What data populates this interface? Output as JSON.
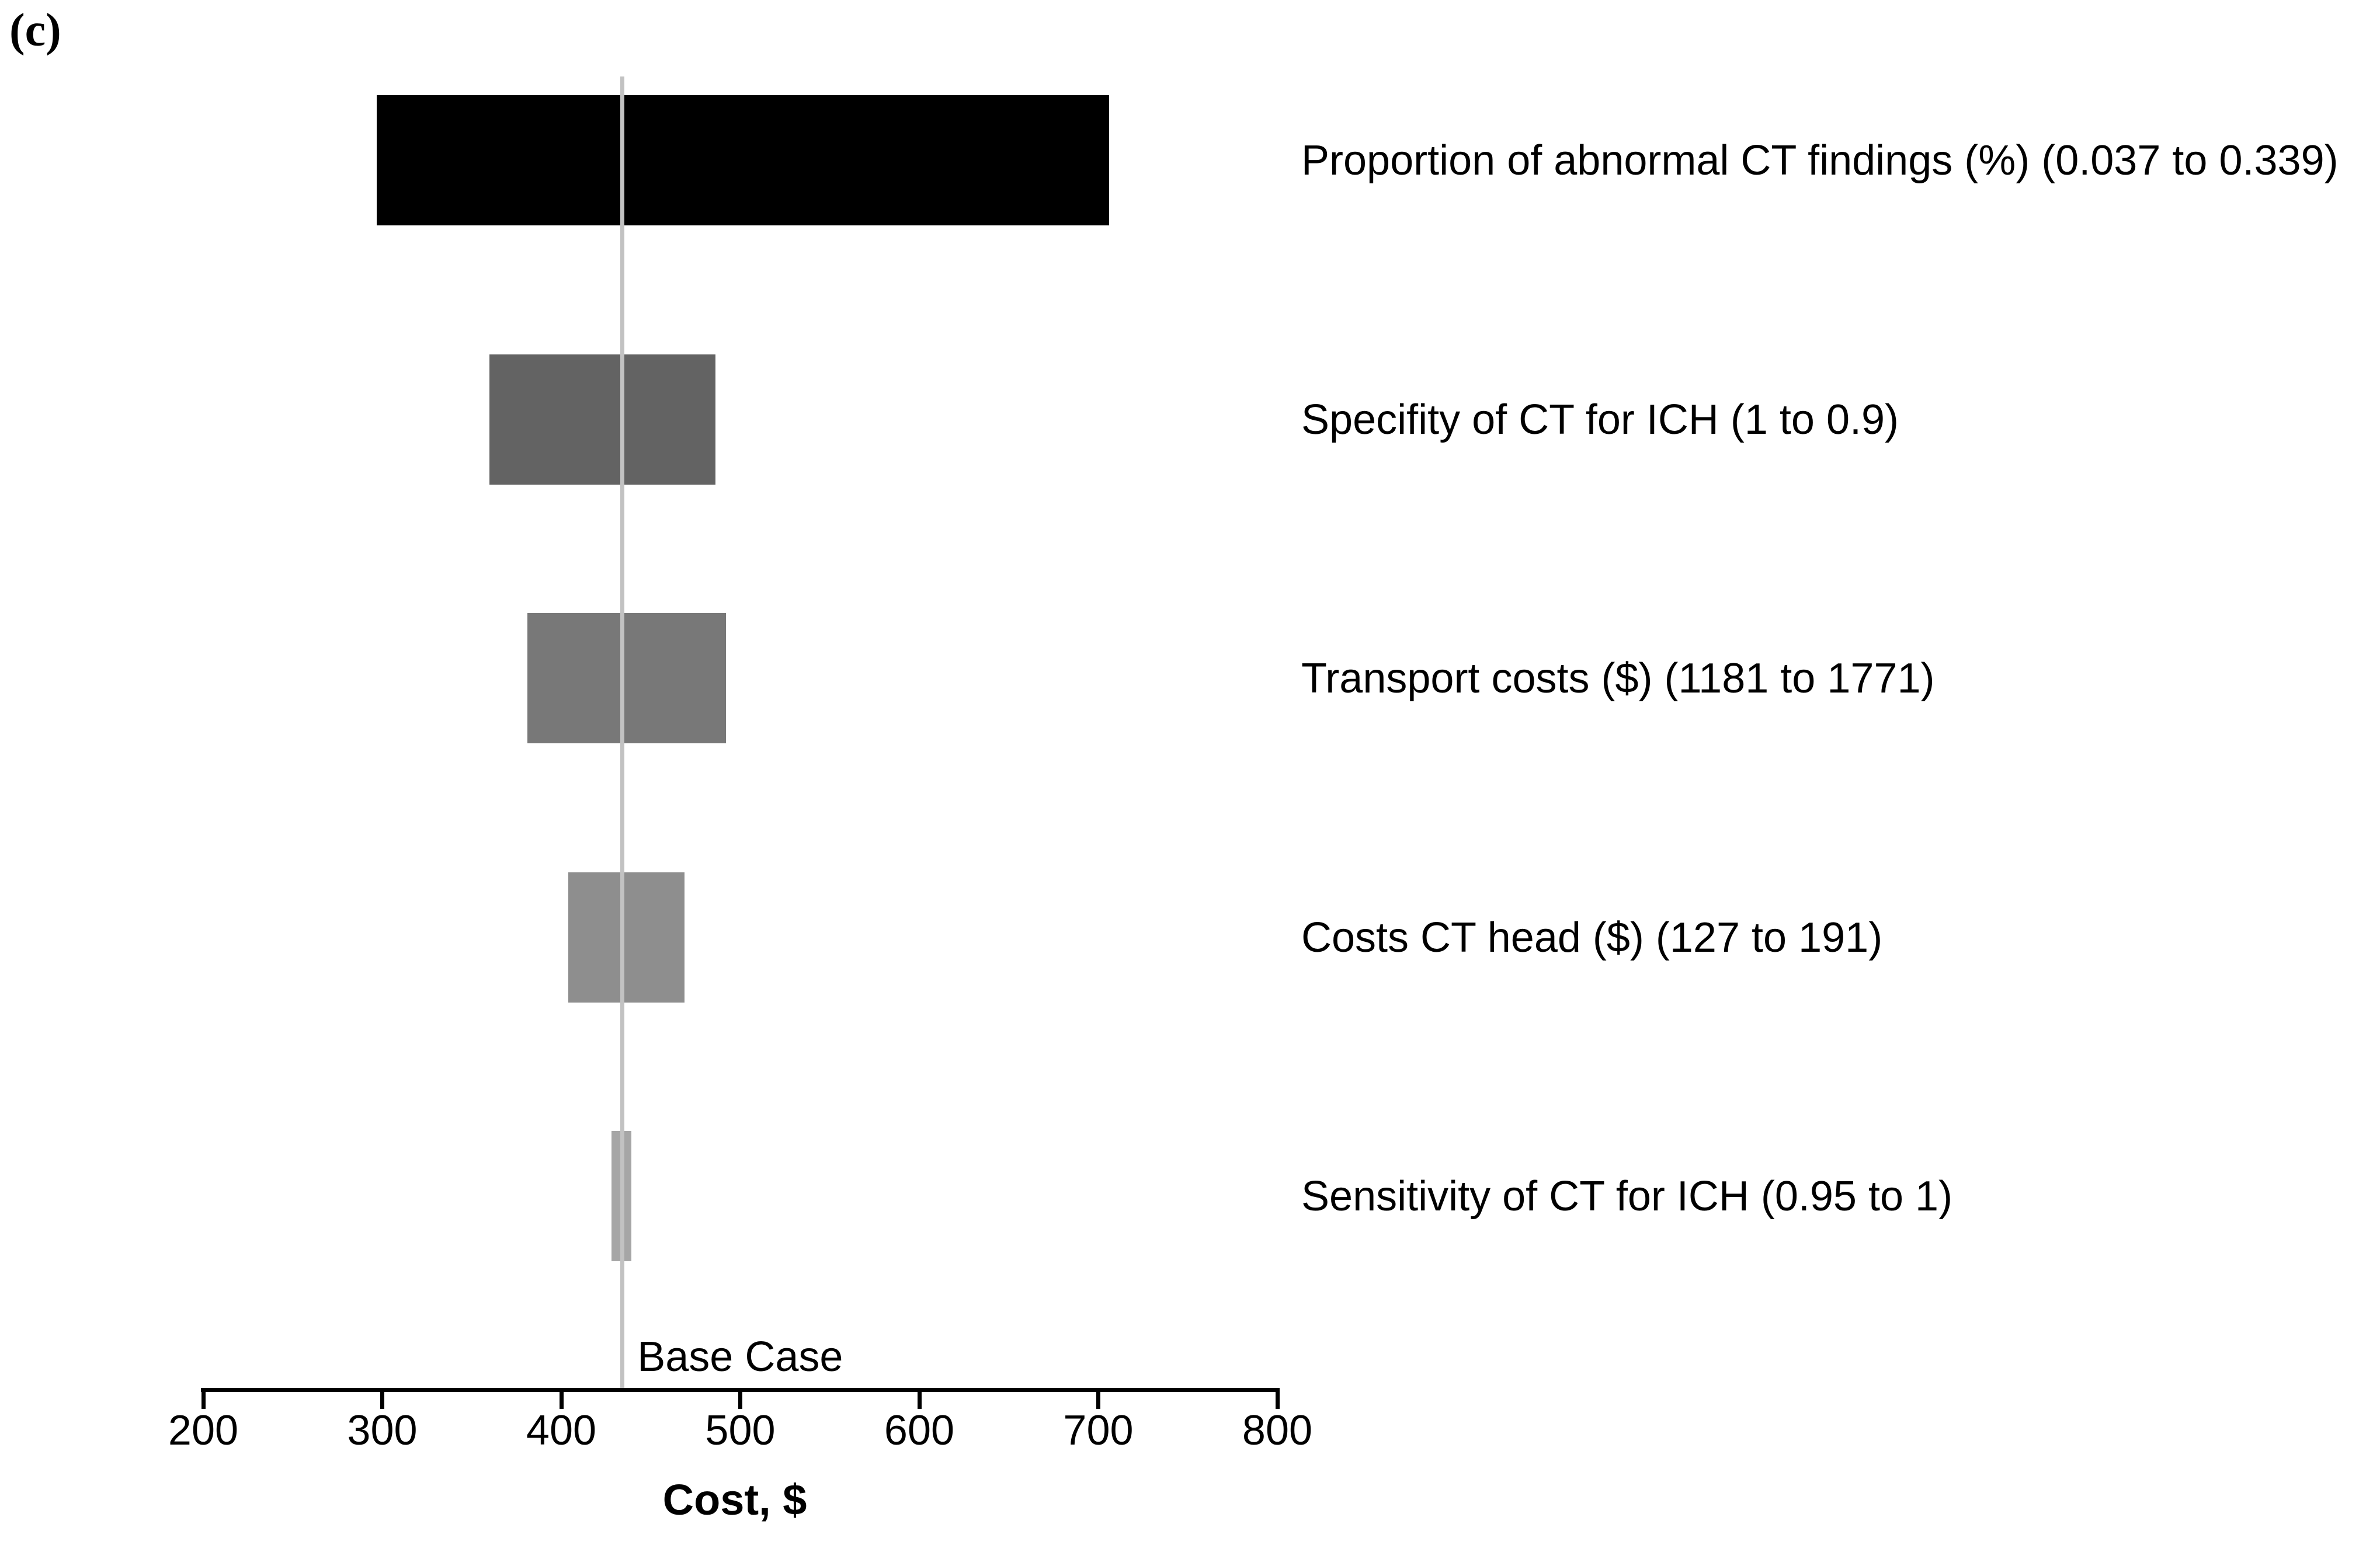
{
  "panel_label": "(c)",
  "chart_data": {
    "type": "bar",
    "subtype": "tornado-sensitivity",
    "title": "",
    "xlabel": "Cost, $",
    "x_axis": {
      "min": 200,
      "max": 800,
      "tick_step": 100,
      "ticks": [
        200,
        300,
        400,
        500,
        600,
        700,
        800
      ]
    },
    "base_case": {
      "label": "Base Case",
      "value": 434,
      "line_color": "#c2c2c2"
    },
    "grid": false,
    "legend": false,
    "bars": [
      {
        "label": "Proportion of abnormal CT findings (%) (0.037 to 0.339)",
        "low": 297,
        "high": 706,
        "color": "#000000"
      },
      {
        "label": "Specifity of CT for ICH (1 to 0.9)",
        "low": 360,
        "high": 486,
        "color": "#636363"
      },
      {
        "label": "Transport costs ($) (1181 to 1771)",
        "low": 381,
        "high": 492,
        "color": "#787878"
      },
      {
        "label": "Costs CT head ($) (127 to 191)",
        "low": 404,
        "high": 469,
        "color": "#8e8e8e"
      },
      {
        "label": "Sensitivity of CT for ICH (0.95 to 1)",
        "low": 428,
        "high": 439,
        "color": "#a6a6a6"
      }
    ]
  }
}
